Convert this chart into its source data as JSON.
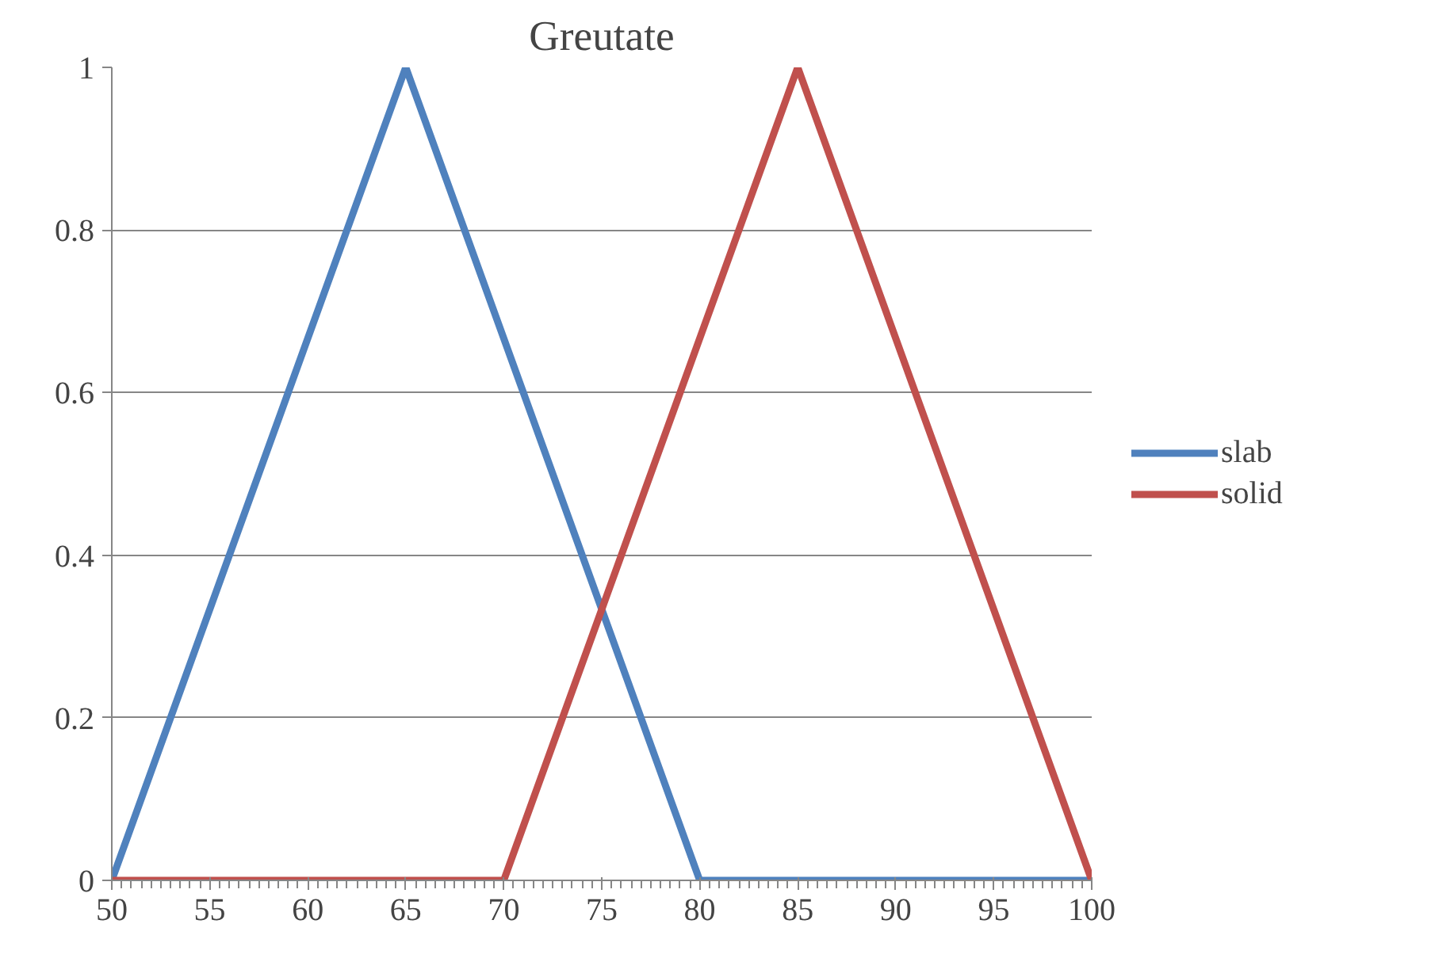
{
  "chart_data": {
    "type": "line",
    "title": "Greutate",
    "series": [
      {
        "name": "slab",
        "color": "#4f81bd",
        "x": [
          50,
          65,
          80,
          100
        ],
        "values": [
          0,
          1,
          0,
          0
        ]
      },
      {
        "name": "solid",
        "color": "#c0504d",
        "x": [
          50,
          70,
          85,
          100
        ],
        "values": [
          0,
          0,
          1,
          0
        ]
      }
    ],
    "xlim": [
      50,
      100
    ],
    "xticks": [
      50,
      55,
      60,
      65,
      70,
      75,
      80,
      85,
      90,
      95,
      100
    ],
    "ylim": [
      0,
      1
    ],
    "yticks": [
      0,
      0.2,
      0.4,
      0.6,
      0.8,
      1
    ],
    "grid": "y",
    "legend": "right",
    "marker": "none",
    "line_style": "solid"
  }
}
